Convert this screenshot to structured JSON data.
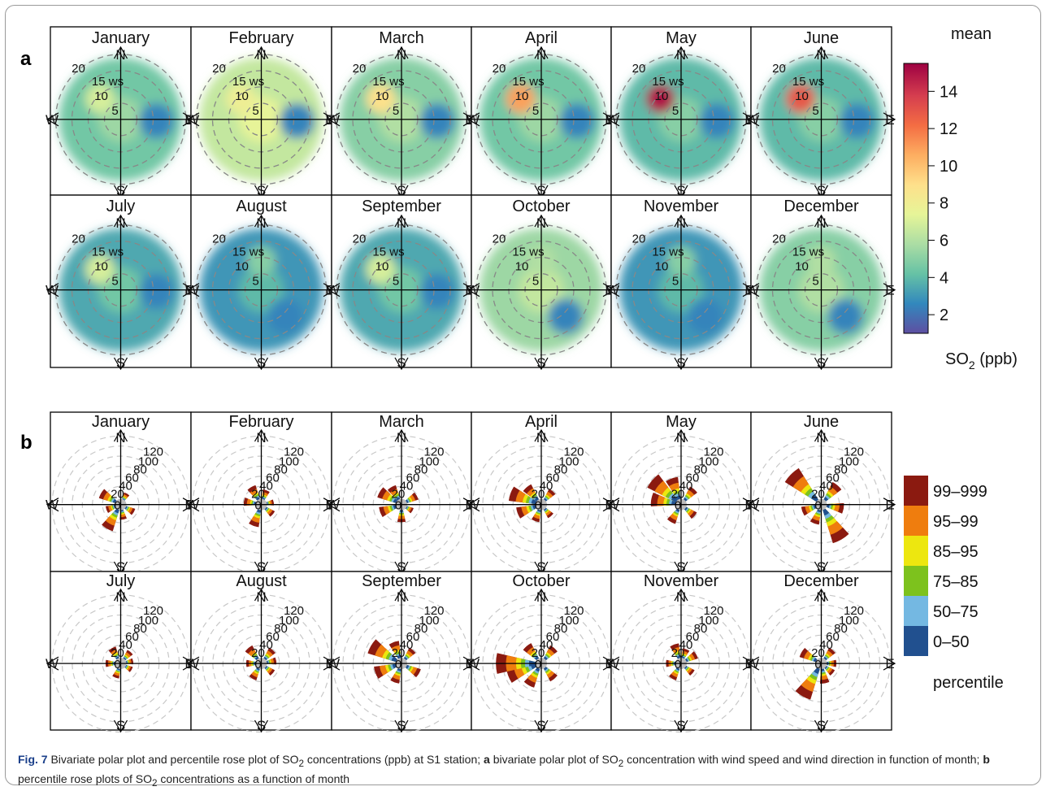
{
  "panel_a": {
    "label": "a",
    "months": [
      "January",
      "February",
      "March",
      "April",
      "May",
      "June",
      "July",
      "August",
      "September",
      "October",
      "November",
      "December"
    ],
    "ring_labels": [
      "20",
      "15 ws",
      "10",
      "5"
    ],
    "legend": {
      "title": "mean",
      "ticks": [
        "2",
        "4",
        "6",
        "8",
        "10",
        "12",
        "14"
      ],
      "unit_main": "SO",
      "unit_sub": "2",
      "unit_tail": " (ppb)"
    }
  },
  "panel_b": {
    "label": "b",
    "months": [
      "January",
      "February",
      "March",
      "April",
      "May",
      "June",
      "July",
      "August",
      "September",
      "October",
      "November",
      "December"
    ],
    "ring_labels": [
      "120",
      "100",
      "80",
      "60",
      "40",
      "20",
      "0"
    ],
    "legend": {
      "entries": [
        "99–999",
        "95–99",
        "85–95",
        "75–85",
        "50–75",
        "0–50"
      ],
      "title": "percentile"
    }
  },
  "directions": {
    "n": "N",
    "e": "E",
    "s": "S",
    "w": "W"
  },
  "caption": {
    "fig_label": "Fig. 7",
    "t1": "Bivariate polar plot and percentile rose plot of SO",
    "t2": " concentrations (ppb) at S1 station; ",
    "t3": " bivariate polar plot of SO",
    "t4": " concentration with wind speed and wind direction in function of month; ",
    "t5": " percentile rose plots of SO",
    "t6": " concentrations as a function of month",
    "sub": "2",
    "a": "a",
    "b": "b"
  },
  "colors": {
    "percentile": [
      "#8b1a10",
      "#ef7d0e",
      "#ede70f",
      "#7dc21d",
      "#74b8e2",
      "#21508f"
    ],
    "viridis_like": [
      "#5e4fa2",
      "#3288bd",
      "#66c2a5",
      "#abdda4",
      "#e6f598",
      "#fee08b",
      "#fdae61",
      "#f46d43",
      "#d53e4f",
      "#9e0142"
    ]
  },
  "chart_data": [
    {
      "type": "heatmap",
      "title": "",
      "subtype": "bivariate polar plot",
      "panels": [
        "January",
        "February",
        "March",
        "April",
        "May",
        "June",
        "July",
        "August",
        "September",
        "October",
        "November",
        "December"
      ],
      "radial_variable": "ws",
      "radial_ticks": [
        5,
        10,
        15,
        20
      ],
      "color_scale": {
        "label": "SO2 (ppb)",
        "stat": "mean",
        "range": [
          1,
          15.5
        ],
        "ticks": [
          2,
          4,
          6,
          8,
          10,
          12,
          14
        ]
      },
      "approx_peak_mean": {
        "January": 7,
        "February": 8,
        "March": 9,
        "April": 11,
        "May": 15,
        "June": 13,
        "July": 7,
        "August": 5,
        "September": 7,
        "October": 6,
        "November": 5,
        "December": 6
      },
      "approx_peak_direction": {
        "January": "NW",
        "February": "NW",
        "March": "NW",
        "April": "NW",
        "May": "NW",
        "June": "NW",
        "July": "NW",
        "August": "N",
        "September": "NW",
        "October": "N",
        "November": "N",
        "December": "N"
      }
    },
    {
      "type": "bar",
      "subtype": "percentile rose",
      "panels": [
        "January",
        "February",
        "March",
        "April",
        "May",
        "June",
        "July",
        "August",
        "September",
        "October",
        "November",
        "December"
      ],
      "radial_ticks": [
        0,
        20,
        40,
        60,
        80,
        100,
        120
      ],
      "series": [
        {
          "name": "99–999"
        },
        {
          "name": "95–99"
        },
        {
          "name": "85–95"
        },
        {
          "name": "75–85"
        },
        {
          "name": "50–75"
        },
        {
          "name": "0–50"
        }
      ],
      "legend_title": "percentile",
      "petals_deg_and_max": {
        "January": [
          [
            300,
            35
          ],
          [
            210,
            45
          ],
          [
            120,
            20
          ],
          [
            30,
            15
          ],
          [
            250,
            20
          ],
          [
            170,
            20
          ]
        ],
        "February": [
          [
            330,
            30
          ],
          [
            280,
            25
          ],
          [
            200,
            35
          ],
          [
            130,
            20
          ],
          [
            20,
            20
          ],
          [
            80,
            15
          ]
        ],
        "March": [
          [
            300,
            40
          ],
          [
            250,
            35
          ],
          [
            180,
            25
          ],
          [
            60,
            25
          ],
          [
            120,
            15
          ],
          [
            330,
            30
          ]
        ],
        "April": [
          [
            290,
            55
          ],
          [
            250,
            40
          ],
          [
            200,
            25
          ],
          [
            140,
            20
          ],
          [
            40,
            25
          ],
          [
            320,
            35
          ]
        ],
        "May": [
          [
            310,
            65
          ],
          [
            280,
            50
          ],
          [
            340,
            45
          ],
          [
            210,
            30
          ],
          [
            130,
            25
          ],
          [
            40,
            30
          ]
        ],
        "June": [
          [
            315,
            75
          ],
          [
            150,
            70
          ],
          [
            40,
            40
          ],
          [
            200,
            30
          ],
          [
            100,
            35
          ],
          [
            250,
            30
          ]
        ],
        "July": [
          [
            330,
            25
          ],
          [
            200,
            20
          ],
          [
            120,
            15
          ],
          [
            40,
            20
          ],
          [
            270,
            20
          ],
          [
            80,
            15
          ]
        ],
        "August": [
          [
            320,
            30
          ],
          [
            210,
            25
          ],
          [
            130,
            20
          ],
          [
            40,
            25
          ],
          [
            80,
            20
          ],
          [
            270,
            20
          ]
        ],
        "September": [
          [
            300,
            60
          ],
          [
            250,
            45
          ],
          [
            200,
            30
          ],
          [
            120,
            30
          ],
          [
            40,
            25
          ],
          [
            340,
            35
          ]
        ],
        "October": [
          [
            270,
            80
          ],
          [
            250,
            60
          ],
          [
            210,
            40
          ],
          [
            140,
            30
          ],
          [
            40,
            30
          ],
          [
            320,
            35
          ]
        ],
        "November": [
          [
            340,
            30
          ],
          [
            210,
            25
          ],
          [
            130,
            20
          ],
          [
            60,
            25
          ],
          [
            270,
            20
          ],
          [
            20,
            20
          ]
        ],
        "December": [
          [
            210,
            65
          ],
          [
            300,
            35
          ],
          [
            130,
            20
          ],
          [
            40,
            25
          ],
          [
            90,
            20
          ],
          [
            170,
            30
          ]
        ]
      }
    }
  ]
}
